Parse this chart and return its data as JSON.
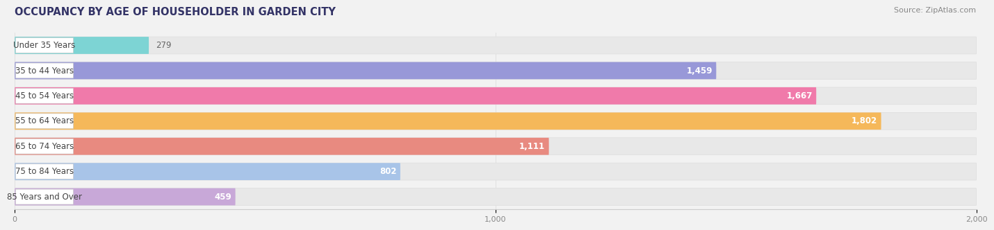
{
  "title": "OCCUPANCY BY AGE OF HOUSEHOLDER IN GARDEN CITY",
  "source": "Source: ZipAtlas.com",
  "categories": [
    "Under 35 Years",
    "35 to 44 Years",
    "45 to 54 Years",
    "55 to 64 Years",
    "65 to 74 Years",
    "75 to 84 Years",
    "85 Years and Over"
  ],
  "values": [
    279,
    1459,
    1667,
    1802,
    1111,
    802,
    459
  ],
  "bar_colors": [
    "#7dd4d4",
    "#9898d8",
    "#f07aaa",
    "#f5b85a",
    "#e88a80",
    "#a8c4e8",
    "#c8a8d8"
  ],
  "xlim": [
    0,
    2000
  ],
  "xticks": [
    0,
    1000,
    2000
  ],
  "xtick_labels": [
    "0",
    "1,000",
    "2,000"
  ],
  "bg_color": "#f2f2f2",
  "bar_bg_color": "#e8e8e8",
  "title_color": "#333366",
  "value_colors_inside": [
    "white",
    "white",
    "white",
    "white",
    "white",
    "white",
    "white"
  ],
  "value_colors_outside": [
    "#666666",
    "#666666",
    "#666666",
    "#666666",
    "#666666",
    "#666666",
    "#666666"
  ],
  "inside_threshold": 400,
  "title_fontsize": 10.5,
  "source_fontsize": 8,
  "label_fontsize": 8.5,
  "value_fontsize": 8.5
}
